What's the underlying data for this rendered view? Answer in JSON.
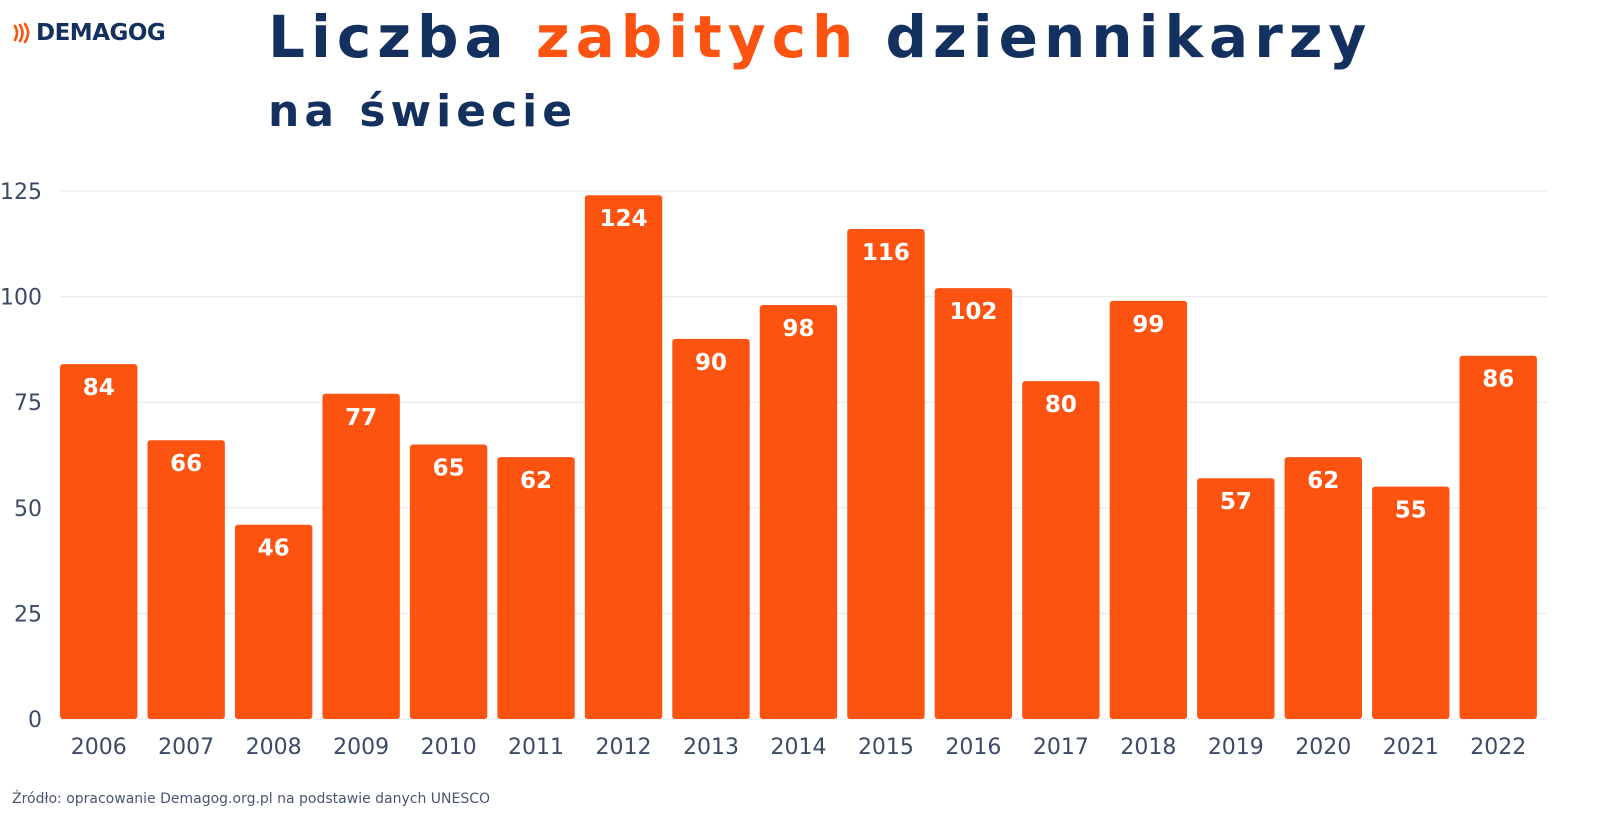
{
  "logo": {
    "text": "DEMAGOG",
    "icon": "signal-waves-icon"
  },
  "title": {
    "part1": "Liczba ",
    "accent": "zabitych",
    "part2": " dziennikarzy"
  },
  "subtitle": "na świecie",
  "colors": {
    "bar": "#fd5310",
    "title": "#13305e",
    "accent": "#fd5310",
    "axis_text": "#3d4a66",
    "grid": "#e4e7ee",
    "bar_label": "#ffffff"
  },
  "chart_data": {
    "type": "bar",
    "categories": [
      "2006",
      "2007",
      "2008",
      "2009",
      "2010",
      "2011",
      "2012",
      "2013",
      "2014",
      "2015",
      "2016",
      "2017",
      "2018",
      "2019",
      "2020",
      "2021",
      "2022"
    ],
    "values": [
      84,
      66,
      46,
      77,
      65,
      62,
      124,
      90,
      98,
      116,
      102,
      80,
      99,
      57,
      62,
      55,
      86
    ],
    "ylim": [
      0,
      125
    ],
    "yticks": [
      0,
      25,
      50,
      75,
      100,
      125
    ],
    "grid": true,
    "data_labels": true
  },
  "source": "Źródło: opracowanie Demagog.org.pl na podstawie danych UNESCO"
}
